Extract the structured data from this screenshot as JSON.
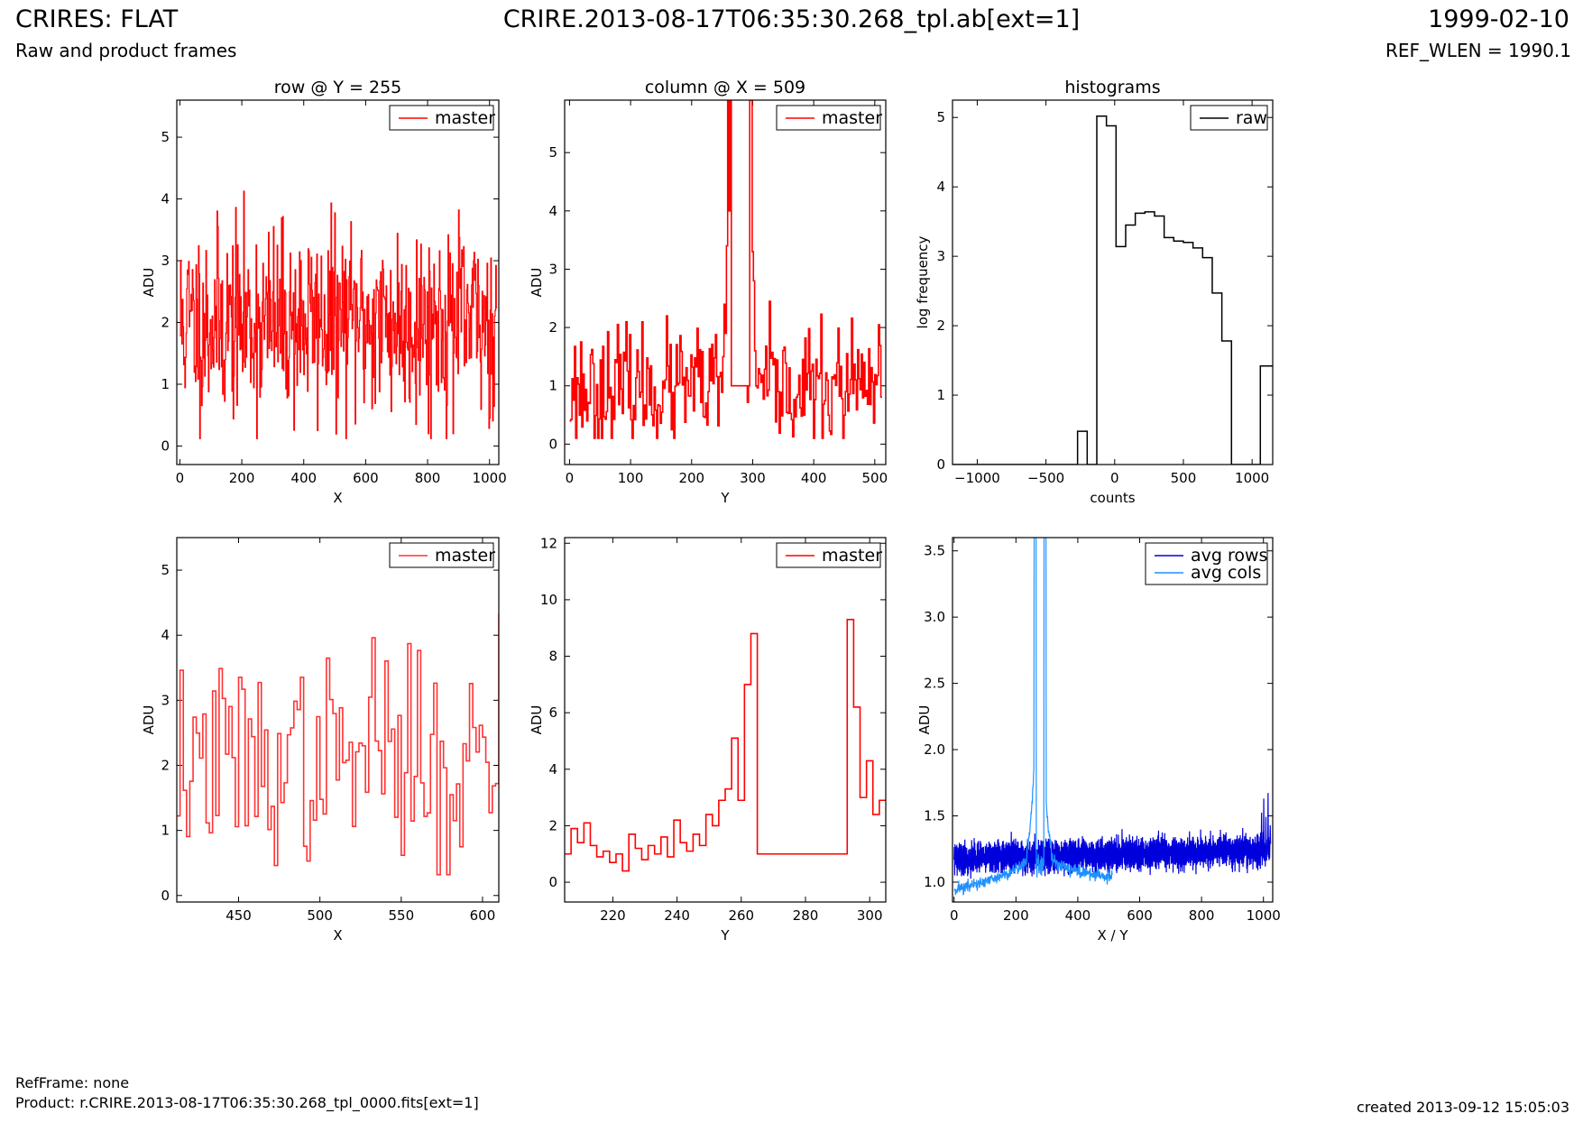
{
  "header": {
    "title_left": "CRIRES: FLAT",
    "title_center": "CRIRE.2013-08-17T06:35:30.268_tpl.ab[ext=1]",
    "title_right": "1999-02-10",
    "subtitle_left": "Raw and product frames",
    "subtitle_right": "REF_WLEN = 1990.1"
  },
  "footer": {
    "ref_frame": "RefFrame: none",
    "product": "Product: r.CRIRE.2013-08-17T06:35:30.268_tpl_0000.fits[ext=1]",
    "created": "created 2013-09-12 15:05:03"
  },
  "colors": {
    "red": "#ff0000",
    "red_light": "#ff3333",
    "black": "#000000",
    "blue": "#0000dd",
    "light_blue": "#1e90ff"
  },
  "chart_data": [
    {
      "id": "row",
      "type": "line",
      "title": "row @ Y = 255",
      "xlabel": "X",
      "ylabel": "ADU",
      "xlim": [
        -10,
        1030
      ],
      "ylim": [
        -0.3,
        5.6
      ],
      "xticks": [
        0,
        200,
        400,
        600,
        800,
        1000
      ],
      "yticks": [
        0,
        1,
        2,
        3,
        4,
        5
      ],
      "legend": "top-right",
      "series": [
        {
          "name": "master",
          "color": "#ff0000",
          "step": true,
          "generated": {
            "seed": 11,
            "n": 512,
            "x0": 0,
            "x1": 1022,
            "mean": 2.0,
            "sd": 0.78,
            "min": 0.12,
            "max": 4.35
          }
        }
      ]
    },
    {
      "id": "column",
      "type": "line",
      "title": "column @ X = 509",
      "xlabel": "Y",
      "ylabel": "ADU",
      "xlim": [
        -8,
        518
      ],
      "ylim": [
        -0.35,
        5.9
      ],
      "xticks": [
        0,
        100,
        200,
        300,
        400,
        500
      ],
      "yticks": [
        0,
        1,
        2,
        3,
        4,
        5
      ],
      "legend": "top-right",
      "series": [
        {
          "name": "master",
          "color": "#ff0000",
          "step": true,
          "generated": {
            "seed": 23,
            "n": 255,
            "x0": 0,
            "x1": 510,
            "mean": 0.95,
            "sd": 0.5,
            "min": 0.1,
            "max": 2.45,
            "overrides": [
              [
                250,
                1.5
              ],
              [
                252,
                2.4
              ],
              [
                254,
                1.9
              ],
              [
                256,
                3.4
              ],
              [
                258,
                5.9
              ],
              [
                260,
                4.0
              ],
              [
                262,
                5.9
              ],
              [
                264,
                1.0
              ],
              [
                292,
                1.0
              ],
              [
                294,
                5.9
              ],
              [
                296,
                5.9
              ],
              [
                298,
                3.3
              ],
              [
                300,
                2.8
              ],
              [
                302,
                1.6
              ]
            ],
            "flat_range": [
              265,
              291,
              1.0
            ]
          }
        }
      ]
    },
    {
      "id": "histograms",
      "type": "bar",
      "title": "histograms",
      "xlabel": "counts",
      "ylabel": "log frequency",
      "xlim": [
        -1180,
        1150
      ],
      "ylim": [
        0,
        5.25
      ],
      "xticks": [
        -1000,
        -500,
        0,
        500,
        1000
      ],
      "yticks": [
        0,
        1,
        2,
        3,
        4,
        5
      ],
      "legend": "top-right",
      "bin_width": 70,
      "bin_starts": [
        -1180,
        -1110,
        -1040,
        -970,
        -900,
        -830,
        -760,
        -690,
        -620,
        -550,
        -480,
        -410,
        -340,
        -270,
        -200,
        -130,
        -60,
        10,
        80,
        150,
        220,
        290,
        360,
        430,
        500,
        570,
        640,
        710,
        780,
        850,
        920,
        990,
        1060,
        1130
      ],
      "series": [
        {
          "name": "raw",
          "color": "#000000",
          "values": [
            0,
            0,
            0,
            0,
            0,
            0,
            0,
            0,
            0,
            0,
            0,
            0,
            0,
            0.48,
            0,
            5.02,
            4.88,
            3.14,
            3.45,
            3.62,
            3.64,
            3.58,
            3.27,
            3.22,
            3.2,
            3.12,
            2.98,
            2.47,
            1.78,
            0,
            0,
            0,
            1.42,
            1.42
          ]
        }
      ]
    },
    {
      "id": "row-zoom",
      "type": "line",
      "title": "",
      "xlabel": "X",
      "ylabel": "ADU",
      "xlim": [
        412,
        610
      ],
      "ylim": [
        -0.1,
        5.5
      ],
      "xticks": [
        450,
        500,
        550,
        600
      ],
      "yticks": [
        0,
        1,
        2,
        3,
        4,
        5
      ],
      "legend": "top-right",
      "series": [
        {
          "name": "master",
          "color": "#ff3333",
          "step": true,
          "generated": {
            "seed": 37,
            "n": 100,
            "x0": 412,
            "x1": 610,
            "mean": 2.05,
            "sd": 0.75,
            "min": 0.32,
            "max": 4.32,
            "overrides": [
              [
                99,
                4.32
              ],
              [
                98,
                1.72
              ],
              [
                83,
                0.32
              ],
              [
                60,
                3.96
              ]
            ]
          }
        }
      ]
    },
    {
      "id": "column-zoom",
      "type": "line",
      "title": "",
      "xlabel": "Y",
      "ylabel": "ADU",
      "xlim": [
        205,
        305
      ],
      "ylim": [
        -0.7,
        12.2
      ],
      "xticks": [
        220,
        240,
        260,
        280,
        300
      ],
      "yticks": [
        0,
        2,
        4,
        6,
        8,
        10,
        12
      ],
      "legend": "top-right",
      "series": [
        {
          "name": "master",
          "color": "#ff0000",
          "step": true,
          "x": [
            205,
            207,
            209,
            211,
            213,
            215,
            217,
            219,
            221,
            223,
            225,
            227,
            229,
            231,
            233,
            235,
            237,
            239,
            241,
            243,
            245,
            247,
            249,
            251,
            253,
            255,
            257,
            259,
            261,
            263,
            265,
            293,
            295,
            297,
            299,
            301,
            303
          ],
          "y": [
            1.0,
            1.9,
            1.4,
            2.1,
            1.3,
            0.9,
            1.1,
            0.7,
            1.0,
            0.4,
            1.7,
            1.2,
            0.8,
            1.3,
            1.0,
            1.6,
            0.9,
            2.2,
            1.4,
            1.1,
            1.7,
            1.3,
            2.4,
            2.0,
            2.9,
            3.3,
            5.1,
            2.9,
            7.0,
            8.8,
            1.0,
            9.3,
            6.2,
            3.0,
            4.3,
            2.4,
            2.9
          ]
        }
      ]
    },
    {
      "id": "averages",
      "type": "line",
      "title": "",
      "xlabel": "X / Y",
      "ylabel": "ADU",
      "xlim": [
        -5,
        1030
      ],
      "ylim": [
        0.85,
        3.6
      ],
      "xticks": [
        0,
        200,
        400,
        600,
        800,
        1000
      ],
      "yticks": [
        1.0,
        1.5,
        2.0,
        2.5,
        3.0,
        3.5
      ],
      "legend": "top-right",
      "series": [
        {
          "name": "avg rows",
          "color": "#0000dd",
          "generated": {
            "seed": 53,
            "n": 1024,
            "x0": 0,
            "x1": 1023,
            "trend": [
              1.18,
              1.24
            ],
            "amp": 0.1,
            "sd": 0.035
          }
        },
        {
          "name": "avg cols",
          "color": "#1e90ff",
          "generated": {
            "seed": 71,
            "n": 512,
            "x0": 0,
            "x1": 511,
            "peak_center": 275,
            "peak": 3.6,
            "base": 0.92,
            "sd": 0.025
          }
        }
      ]
    }
  ]
}
